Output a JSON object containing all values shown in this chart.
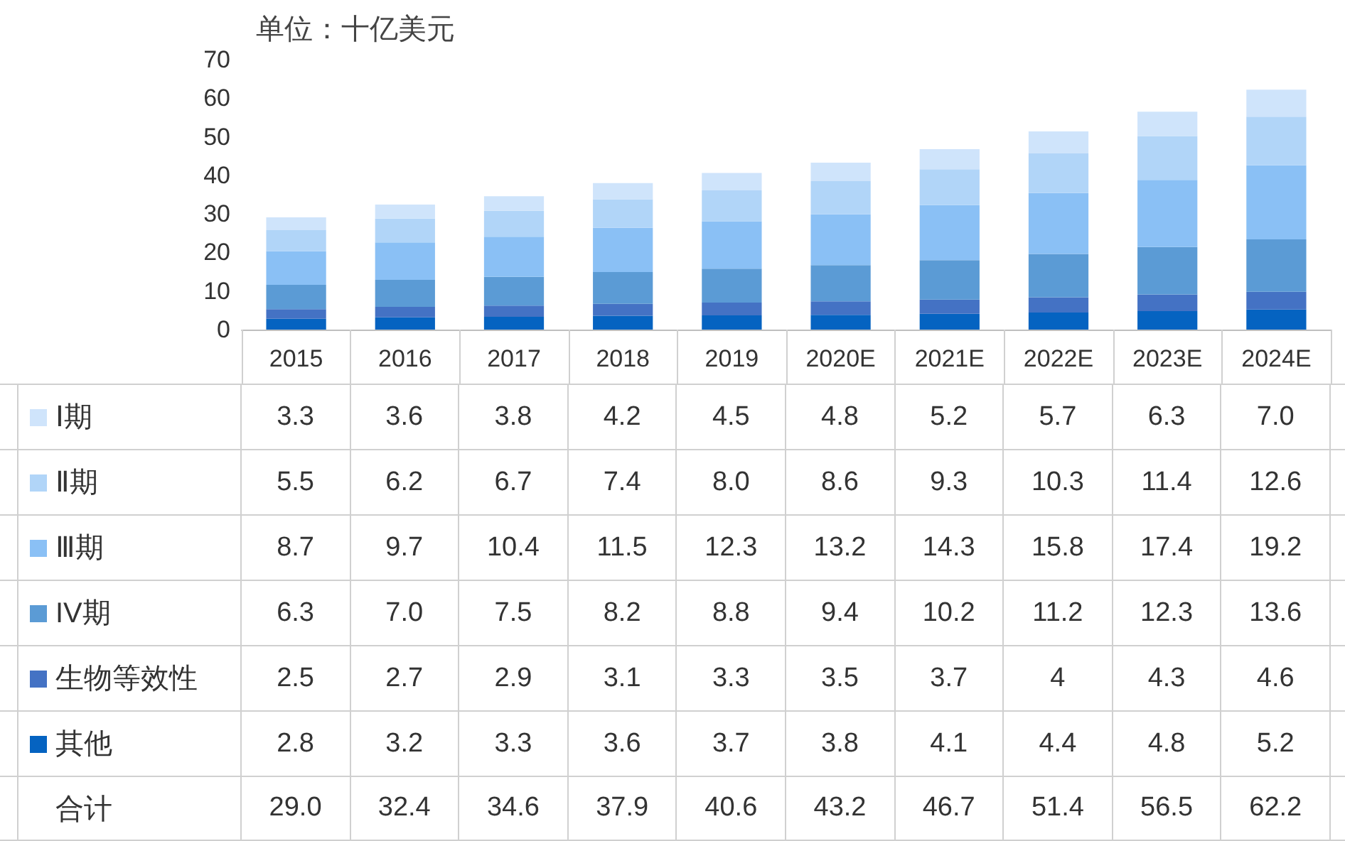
{
  "chart_data": {
    "type": "bar",
    "stacked": true,
    "ylabel": "单位：十亿美元",
    "grid": false,
    "legend": "bottom left",
    "categories": [
      "2015",
      "2016",
      "2017",
      "2018",
      "2019",
      "2020E",
      "2021E",
      "2022E",
      "2023E",
      "2024E"
    ],
    "ylim": [
      0,
      70
    ],
    "yticks": [
      0,
      10,
      20,
      30,
      40,
      50,
      60,
      70
    ],
    "series": [
      {
        "name": "其他",
        "color": "#0563c1",
        "values": [
          2.8,
          3.2,
          3.3,
          3.6,
          3.7,
          3.8,
          4.1,
          4.4,
          4.8,
          5.2
        ],
        "value_labels": [
          "2.8",
          "3.2",
          "3.3",
          "3.6",
          "3.7",
          "3.8",
          "4.1",
          "4.4",
          "4.8",
          "5.2"
        ]
      },
      {
        "name": "生物等效性",
        "color": "#4472c4",
        "values": [
          2.5,
          2.7,
          2.9,
          3.1,
          3.3,
          3.5,
          3.7,
          4,
          4.3,
          4.6
        ],
        "value_labels": [
          "2.5",
          "2.7",
          "2.9",
          "3.1",
          "3.3",
          "3.5",
          "3.7",
          "4",
          "4.3",
          "4.6"
        ]
      },
      {
        "name": "IV期",
        "color": "#5b9bd5",
        "values": [
          6.3,
          7.0,
          7.5,
          8.2,
          8.8,
          9.4,
          10.2,
          11.2,
          12.3,
          13.6
        ],
        "value_labels": [
          "6.3",
          "7.0",
          "7.5",
          "8.2",
          "8.8",
          "9.4",
          "10.2",
          "11.2",
          "12.3",
          "13.6"
        ]
      },
      {
        "name": "Ⅲ期",
        "color": "#8ac0f5",
        "values": [
          8.7,
          9.7,
          10.4,
          11.5,
          12.3,
          13.2,
          14.3,
          15.8,
          17.4,
          19.2
        ],
        "value_labels": [
          "8.7",
          "9.7",
          "10.4",
          "11.5",
          "12.3",
          "13.2",
          "14.3",
          "15.8",
          "17.4",
          "19.2"
        ]
      },
      {
        "name": "Ⅱ期",
        "color": "#b1d5f8",
        "values": [
          5.5,
          6.2,
          6.7,
          7.4,
          8.0,
          8.6,
          9.3,
          10.3,
          11.4,
          12.6
        ],
        "value_labels": [
          "5.5",
          "6.2",
          "6.7",
          "7.4",
          "8.0",
          "8.6",
          "9.3",
          "10.3",
          "11.4",
          "12.6"
        ]
      },
      {
        "name": "Ⅰ期",
        "color": "#cfe4fb",
        "values": [
          3.3,
          3.6,
          3.8,
          4.2,
          4.5,
          4.8,
          5.2,
          5.7,
          6.3,
          7.0
        ],
        "value_labels": [
          "3.3",
          "3.6",
          "3.8",
          "4.2",
          "4.5",
          "4.8",
          "5.2",
          "5.7",
          "6.3",
          "7.0"
        ]
      }
    ],
    "annotations": [
      "合计",
      "29.0",
      "32.4",
      "34.6",
      "37.9",
      "40.6",
      "43.2",
      "46.7",
      "51.4",
      "56.5",
      "62.2"
    ]
  }
}
